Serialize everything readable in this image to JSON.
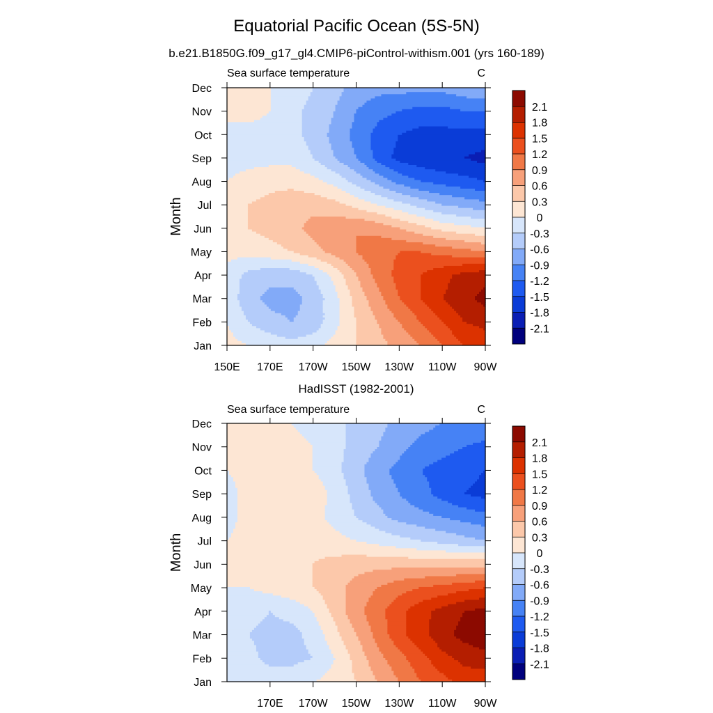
{
  "figure": {
    "title": "Equatorial Pacific Ocean (5S-5N)",
    "subtitle": "b.e21.B1850G.f09_g17_gl4.CMIP6-piControl-withism.001 (yrs 160-189)"
  },
  "colorbar": {
    "colors": [
      "#00007d",
      "#0a1eb4",
      "#0a3cd7",
      "#1e5af0",
      "#4682f5",
      "#82aaf8",
      "#b4ccfa",
      "#d7e6fb",
      "#fde6d4",
      "#fcc8aa",
      "#f7a07a",
      "#f07846",
      "#eb501e",
      "#dc3200",
      "#b41e00",
      "#8c0a00"
    ],
    "levels": [
      -2.1,
      -1.8,
      -1.5,
      -1.2,
      -0.9,
      -0.6,
      -0.3,
      0,
      0.3,
      0.6,
      0.9,
      1.2,
      1.5,
      1.8,
      2.1
    ],
    "labels": [
      "-2.1",
      "-1.8",
      "-1.5",
      "-1.2",
      "-0.9",
      "-0.6",
      "-0.3",
      "0",
      "0.3",
      "0.6",
      "0.9",
      "1.2",
      "1.5",
      "1.8",
      "2.1"
    ]
  },
  "chart_data": [
    {
      "type": "heatmap",
      "panel_title": "",
      "left_string": "Sea surface temperature",
      "right_string": "C",
      "ylabel": "Month",
      "xlim": [
        150,
        270
      ],
      "x_ticks": [
        150,
        170,
        190,
        210,
        230,
        250,
        270
      ],
      "x_tick_labels": [
        "150E",
        "170E",
        "170W",
        "150W",
        "130W",
        "110W",
        "90W"
      ],
      "y_tick_labels": [
        "Jan",
        "Feb",
        "Mar",
        "Apr",
        "May",
        "Jun",
        "Jul",
        "Aug",
        "Sep",
        "Oct",
        "Nov",
        "Dec"
      ],
      "lon": [
        150,
        160,
        170,
        180,
        190,
        200,
        210,
        220,
        230,
        240,
        250,
        260,
        270
      ],
      "months": [
        "Jan",
        "Feb",
        "Mar",
        "Apr",
        "May",
        "Jun",
        "Jul",
        "Aug",
        "Sep",
        "Oct",
        "Nov",
        "Dec"
      ],
      "values": [
        [
          0.1,
          0.0,
          -0.1,
          -0.2,
          -0.1,
          0.1,
          0.3,
          0.5,
          0.7,
          0.9,
          1.2,
          1.5,
          1.6
        ],
        [
          0.0,
          -0.3,
          -0.5,
          -0.6,
          -0.5,
          -0.1,
          0.3,
          0.6,
          0.9,
          1.2,
          1.5,
          1.8,
          1.9
        ],
        [
          -0.1,
          -0.5,
          -0.7,
          -0.7,
          -0.5,
          -0.1,
          0.4,
          0.8,
          1.2,
          1.5,
          1.8,
          2.0,
          2.2
        ],
        [
          -0.1,
          -0.4,
          -0.5,
          -0.5,
          -0.3,
          0.1,
          0.6,
          1.0,
          1.3,
          1.5,
          1.7,
          1.9,
          2.0
        ],
        [
          0.1,
          0.1,
          0.2,
          0.3,
          0.5,
          0.7,
          0.9,
          1.1,
          1.2,
          1.2,
          1.1,
          1.0,
          0.9
        ],
        [
          0.2,
          0.3,
          0.4,
          0.5,
          0.7,
          0.8,
          0.9,
          0.8,
          0.6,
          0.4,
          0.2,
          0.1,
          0.0
        ],
        [
          0.1,
          0.3,
          0.4,
          0.5,
          0.5,
          0.4,
          0.2,
          0.0,
          -0.2,
          -0.4,
          -0.6,
          -0.7,
          -0.8
        ],
        [
          0.0,
          0.1,
          0.2,
          0.2,
          0.1,
          -0.1,
          -0.4,
          -0.7,
          -1.0,
          -1.2,
          -1.3,
          -1.4,
          -1.5
        ],
        [
          -0.1,
          -0.1,
          -0.1,
          -0.1,
          -0.3,
          -0.6,
          -0.9,
          -1.3,
          -1.6,
          -1.7,
          -1.8,
          -1.8,
          -1.9
        ],
        [
          -0.1,
          -0.1,
          -0.1,
          -0.2,
          -0.4,
          -0.7,
          -1.0,
          -1.3,
          -1.5,
          -1.6,
          -1.6,
          -1.6,
          -1.6
        ],
        [
          0.1,
          0.1,
          0.0,
          -0.2,
          -0.4,
          -0.6,
          -0.9,
          -1.1,
          -1.2,
          -1.3,
          -1.3,
          -1.2,
          -1.2
        ],
        [
          0.1,
          0.1,
          0.0,
          -0.1,
          -0.3,
          -0.5,
          -0.7,
          -0.8,
          -0.8,
          -0.8,
          -0.8,
          -0.7,
          -0.6
        ]
      ]
    },
    {
      "type": "heatmap",
      "panel_title": "HadISST (1982-2001)",
      "left_string": "Sea surface temperature",
      "right_string": "C",
      "ylabel": "Month",
      "xlim": [
        150,
        270
      ],
      "x_ticks": [
        170,
        190,
        210,
        230,
        250,
        270
      ],
      "x_tick_labels": [
        "170E",
        "170W",
        "150W",
        "130W",
        "110W",
        "90W"
      ],
      "y_tick_labels": [
        "Jan",
        "Feb",
        "Mar",
        "Apr",
        "May",
        "Jun",
        "Jul",
        "Aug",
        "Sep",
        "Oct",
        "Nov",
        "Dec"
      ],
      "lon": [
        150,
        160,
        170,
        180,
        190,
        200,
        210,
        220,
        230,
        240,
        250,
        260,
        270
      ],
      "months": [
        "Jan",
        "Feb",
        "Mar",
        "Apr",
        "May",
        "Jun",
        "Jul",
        "Aug",
        "Sep",
        "Oct",
        "Nov",
        "Dec"
      ],
      "values": [
        [
          0.0,
          -0.1,
          -0.1,
          -0.1,
          0.0,
          0.1,
          0.3,
          0.6,
          0.9,
          1.2,
          1.4,
          1.6,
          1.6
        ],
        [
          -0.1,
          -0.2,
          -0.4,
          -0.4,
          -0.3,
          0.0,
          0.4,
          0.8,
          1.1,
          1.4,
          1.7,
          1.9,
          2.0
        ],
        [
          -0.1,
          -0.3,
          -0.4,
          -0.4,
          -0.2,
          0.2,
          0.6,
          1.0,
          1.4,
          1.7,
          2.0,
          2.2,
          2.3
        ],
        [
          -0.1,
          -0.2,
          -0.3,
          -0.2,
          0.0,
          0.4,
          0.8,
          1.1,
          1.4,
          1.7,
          1.9,
          2.1,
          2.2
        ],
        [
          0.0,
          0.0,
          0.1,
          0.2,
          0.3,
          0.5,
          0.7,
          0.9,
          1.1,
          1.2,
          1.3,
          1.4,
          1.5
        ],
        [
          0.1,
          0.1,
          0.2,
          0.2,
          0.3,
          0.4,
          0.5,
          0.5,
          0.5,
          0.5,
          0.5,
          0.5,
          0.5
        ],
        [
          0.0,
          0.1,
          0.2,
          0.2,
          0.2,
          0.1,
          0.0,
          -0.1,
          -0.2,
          -0.3,
          -0.4,
          -0.5,
          -0.6
        ],
        [
          -0.1,
          0.1,
          0.2,
          0.2,
          0.1,
          -0.1,
          -0.3,
          -0.5,
          -0.7,
          -0.8,
          -0.9,
          -1.0,
          -1.1
        ],
        [
          -0.1,
          0.1,
          0.2,
          0.3,
          0.2,
          -0.1,
          -0.4,
          -0.7,
          -0.9,
          -1.1,
          -1.3,
          -1.5,
          -1.6
        ],
        [
          0.0,
          0.1,
          0.1,
          0.1,
          0.0,
          -0.2,
          -0.5,
          -0.8,
          -1.0,
          -1.2,
          -1.3,
          -1.4,
          -1.5
        ],
        [
          0.1,
          0.1,
          0.1,
          0.1,
          0.0,
          -0.2,
          -0.4,
          -0.6,
          -0.8,
          -1.0,
          -1.1,
          -1.2,
          -1.3
        ],
        [
          0.1,
          0.1,
          0.1,
          0.0,
          -0.1,
          -0.2,
          -0.4,
          -0.5,
          -0.7,
          -0.8,
          -0.9,
          -0.9,
          -0.9
        ]
      ]
    }
  ]
}
